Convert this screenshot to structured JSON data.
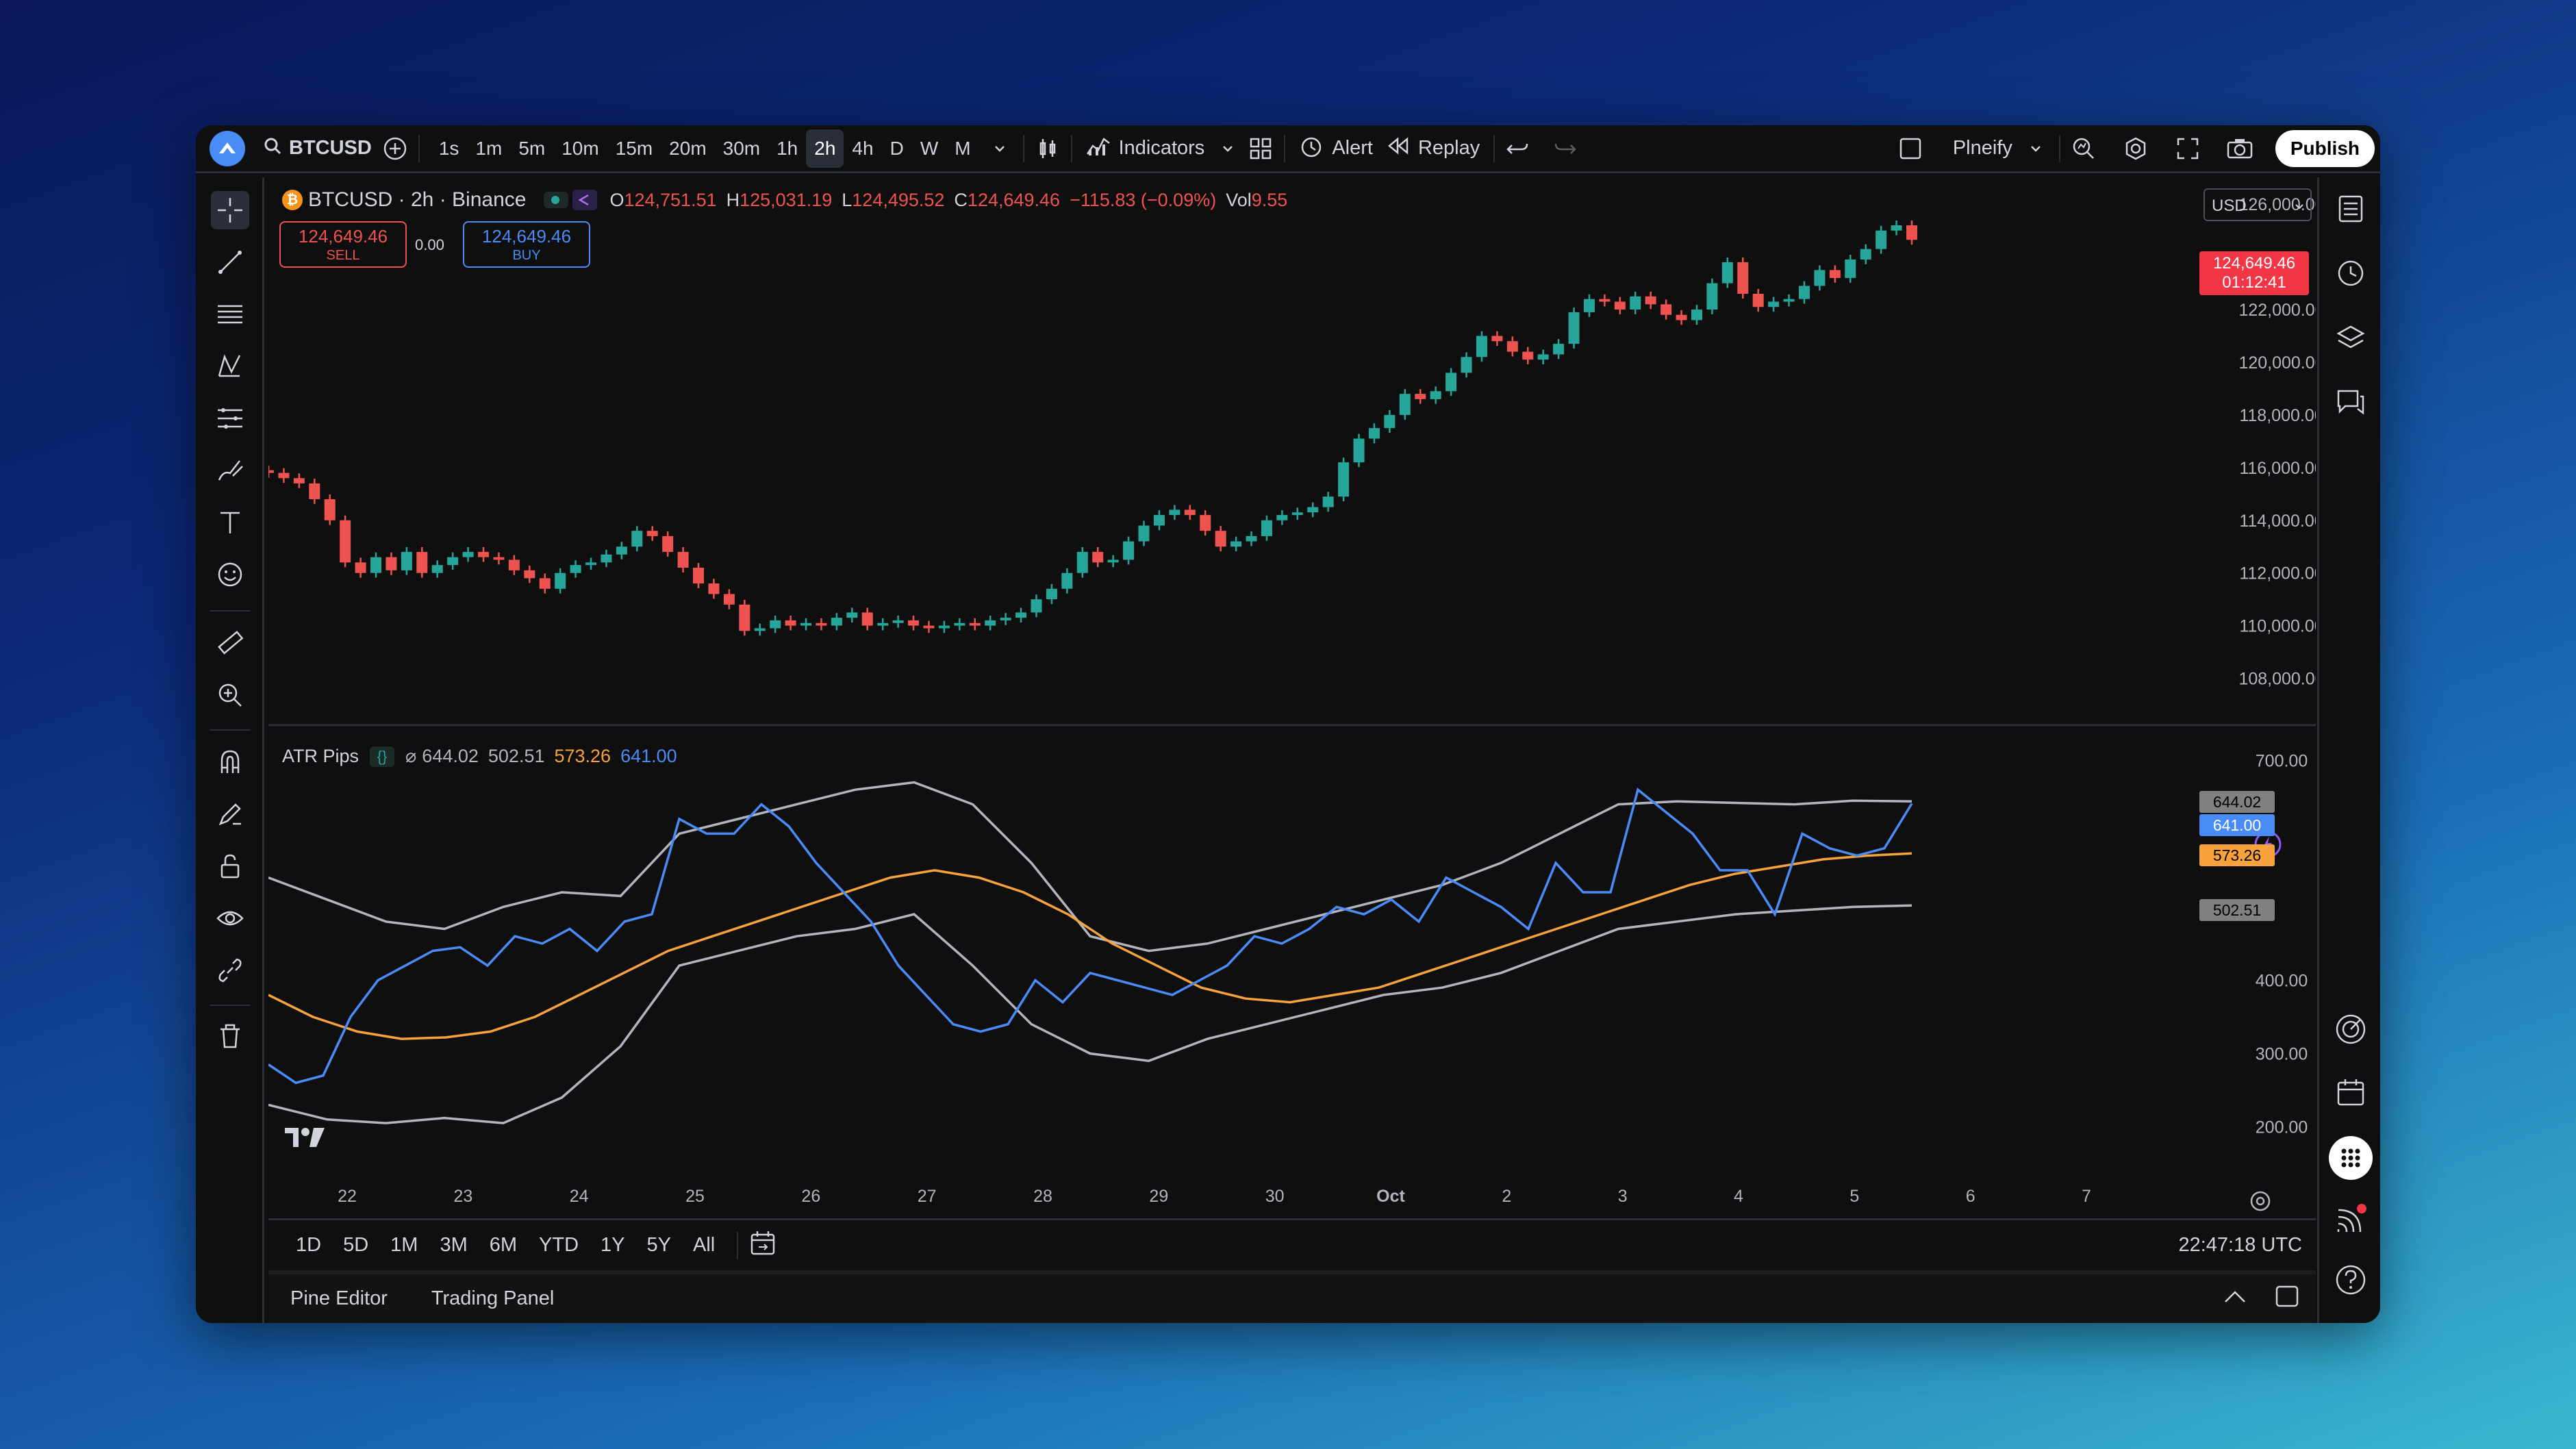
{
  "toolbar": {
    "symbol": "BTCUSD",
    "timeframes": [
      "1s",
      "1m",
      "5m",
      "10m",
      "15m",
      "20m",
      "30m",
      "1h",
      "2h",
      "4h",
      "D",
      "W",
      "M"
    ],
    "active_timeframe": "2h",
    "indicators_label": "Indicators",
    "alert_label": "Alert",
    "replay_label": "Replay",
    "layout_name": "Plneify",
    "publish_label": "Publish"
  },
  "legend": {
    "title": "BTCUSD · 2h · Binance",
    "o_label": "O",
    "o": "124,751.51",
    "h_label": "H",
    "h": "125,031.19",
    "l_label": "L",
    "l": "124,495.52",
    "c_label": "C",
    "c": "124,649.46",
    "change": "−115.83 (−0.09%)",
    "vol_label": "Vol",
    "vol": "9.55"
  },
  "trade": {
    "sell_price": "124,649.46",
    "sell_label": "SELL",
    "spread": "0.00",
    "buy_price": "124,649.46",
    "buy_label": "BUY"
  },
  "currency": "USD",
  "price_axis": {
    "labels": [
      "126,000.00",
      "122,000.00",
      "120,000.00",
      "118,000.00",
      "116,000.00",
      "114,000.00",
      "112,000.00",
      "110,000.00",
      "108,000.00"
    ],
    "last_price": "124,649.46",
    "countdown": "01:12:41"
  },
  "indicator": {
    "name": "ATR Pips",
    "symbol": "⌀",
    "v1": "644.02",
    "v2": "502.51",
    "v3": "573.26",
    "v4": "641.00",
    "axis_labels": [
      "700.00",
      "400.00",
      "300.00",
      "200.00"
    ],
    "badges": [
      "644.02",
      "641.00",
      "573.26",
      "502.51"
    ]
  },
  "time_axis": [
    "22",
    "23",
    "24",
    "25",
    "26",
    "27",
    "28",
    "29",
    "30",
    "Oct",
    "2",
    "3",
    "4",
    "5",
    "6",
    "7"
  ],
  "ranges": [
    "1D",
    "5D",
    "1M",
    "3M",
    "6M",
    "YTD",
    "1Y",
    "5Y",
    "All"
  ],
  "clock": "22:47:18 UTC",
  "footer": {
    "pine_editor": "Pine Editor",
    "trading_panel": "Trading Panel"
  },
  "colors": {
    "up": "#26a69a",
    "down": "#ef5350",
    "atr": "#4a8cf7",
    "mid": "#f7a23b",
    "band": "#b2b5be"
  },
  "chart_data": {
    "type": "candlestick",
    "price_range": [
      107000,
      126500
    ],
    "candles_close": [
      115800,
      115600,
      115400,
      114800,
      114000,
      112400,
      112000,
      112600,
      112100,
      112800,
      112000,
      112300,
      112600,
      112800,
      112600,
      112500,
      112100,
      111800,
      111400,
      112000,
      112300,
      112400,
      112700,
      113000,
      113600,
      113400,
      112800,
      112200,
      111600,
      111200,
      110800,
      109800,
      109900,
      110200,
      110000,
      110100,
      110000,
      110300,
      110500,
      110000,
      110100,
      110200,
      110000,
      109900,
      110000,
      110100,
      110000,
      110200,
      110300,
      110500,
      111000,
      111400,
      112000,
      112800,
      112400,
      112500,
      113200,
      113800,
      114200,
      114400,
      114200,
      113600,
      113000,
      113200,
      113400,
      114000,
      114200,
      114300,
      114500,
      114900,
      116200,
      117100,
      117500,
      118000,
      118800,
      118600,
      118900,
      119600,
      120200,
      121000,
      120800,
      120400,
      120100,
      120300,
      120700,
      121900,
      122400,
      122300,
      122000,
      122500,
      122200,
      121800,
      121600,
      122000,
      123000,
      123800,
      122600,
      122100,
      122300,
      122400,
      122900,
      123500,
      123200,
      123900,
      124300,
      125000,
      125200,
      124649
    ],
    "atr": [
      285,
      260,
      270,
      350,
      400,
      420,
      440,
      445,
      420,
      460,
      450,
      470,
      440,
      480,
      490,
      620,
      600,
      600,
      640,
      610,
      560,
      520,
      480,
      420,
      380,
      340,
      330,
      340,
      400,
      370,
      410,
      400,
      390,
      380,
      400,
      420,
      460,
      450,
      470,
      500,
      490,
      510,
      480,
      540,
      520,
      500,
      470,
      560,
      520,
      520,
      660,
      630,
      600,
      550,
      550,
      490,
      600,
      580,
      570,
      580,
      641
    ],
    "mid": [
      380,
      350,
      330,
      320,
      322,
      330,
      350,
      380,
      410,
      440,
      460,
      480,
      500,
      520,
      540,
      550,
      540,
      520,
      490,
      450,
      420,
      390,
      375,
      370,
      380,
      390,
      410,
      430,
      450,
      470,
      490,
      510,
      530,
      545,
      555,
      565,
      570,
      573
    ],
    "upper": [
      540,
      510,
      480,
      470,
      500,
      520,
      515,
      600,
      620,
      640,
      660,
      670,
      640,
      560,
      460,
      440,
      450,
      470,
      490,
      510,
      530,
      560,
      600,
      640,
      644,
      642,
      640,
      645,
      644
    ],
    "lower": [
      230,
      210,
      205,
      212,
      205,
      240,
      310,
      420,
      440,
      460,
      470,
      490,
      420,
      340,
      300,
      290,
      320,
      340,
      360,
      380,
      390,
      410,
      440,
      470,
      480,
      490,
      495,
      500,
      502
    ]
  }
}
